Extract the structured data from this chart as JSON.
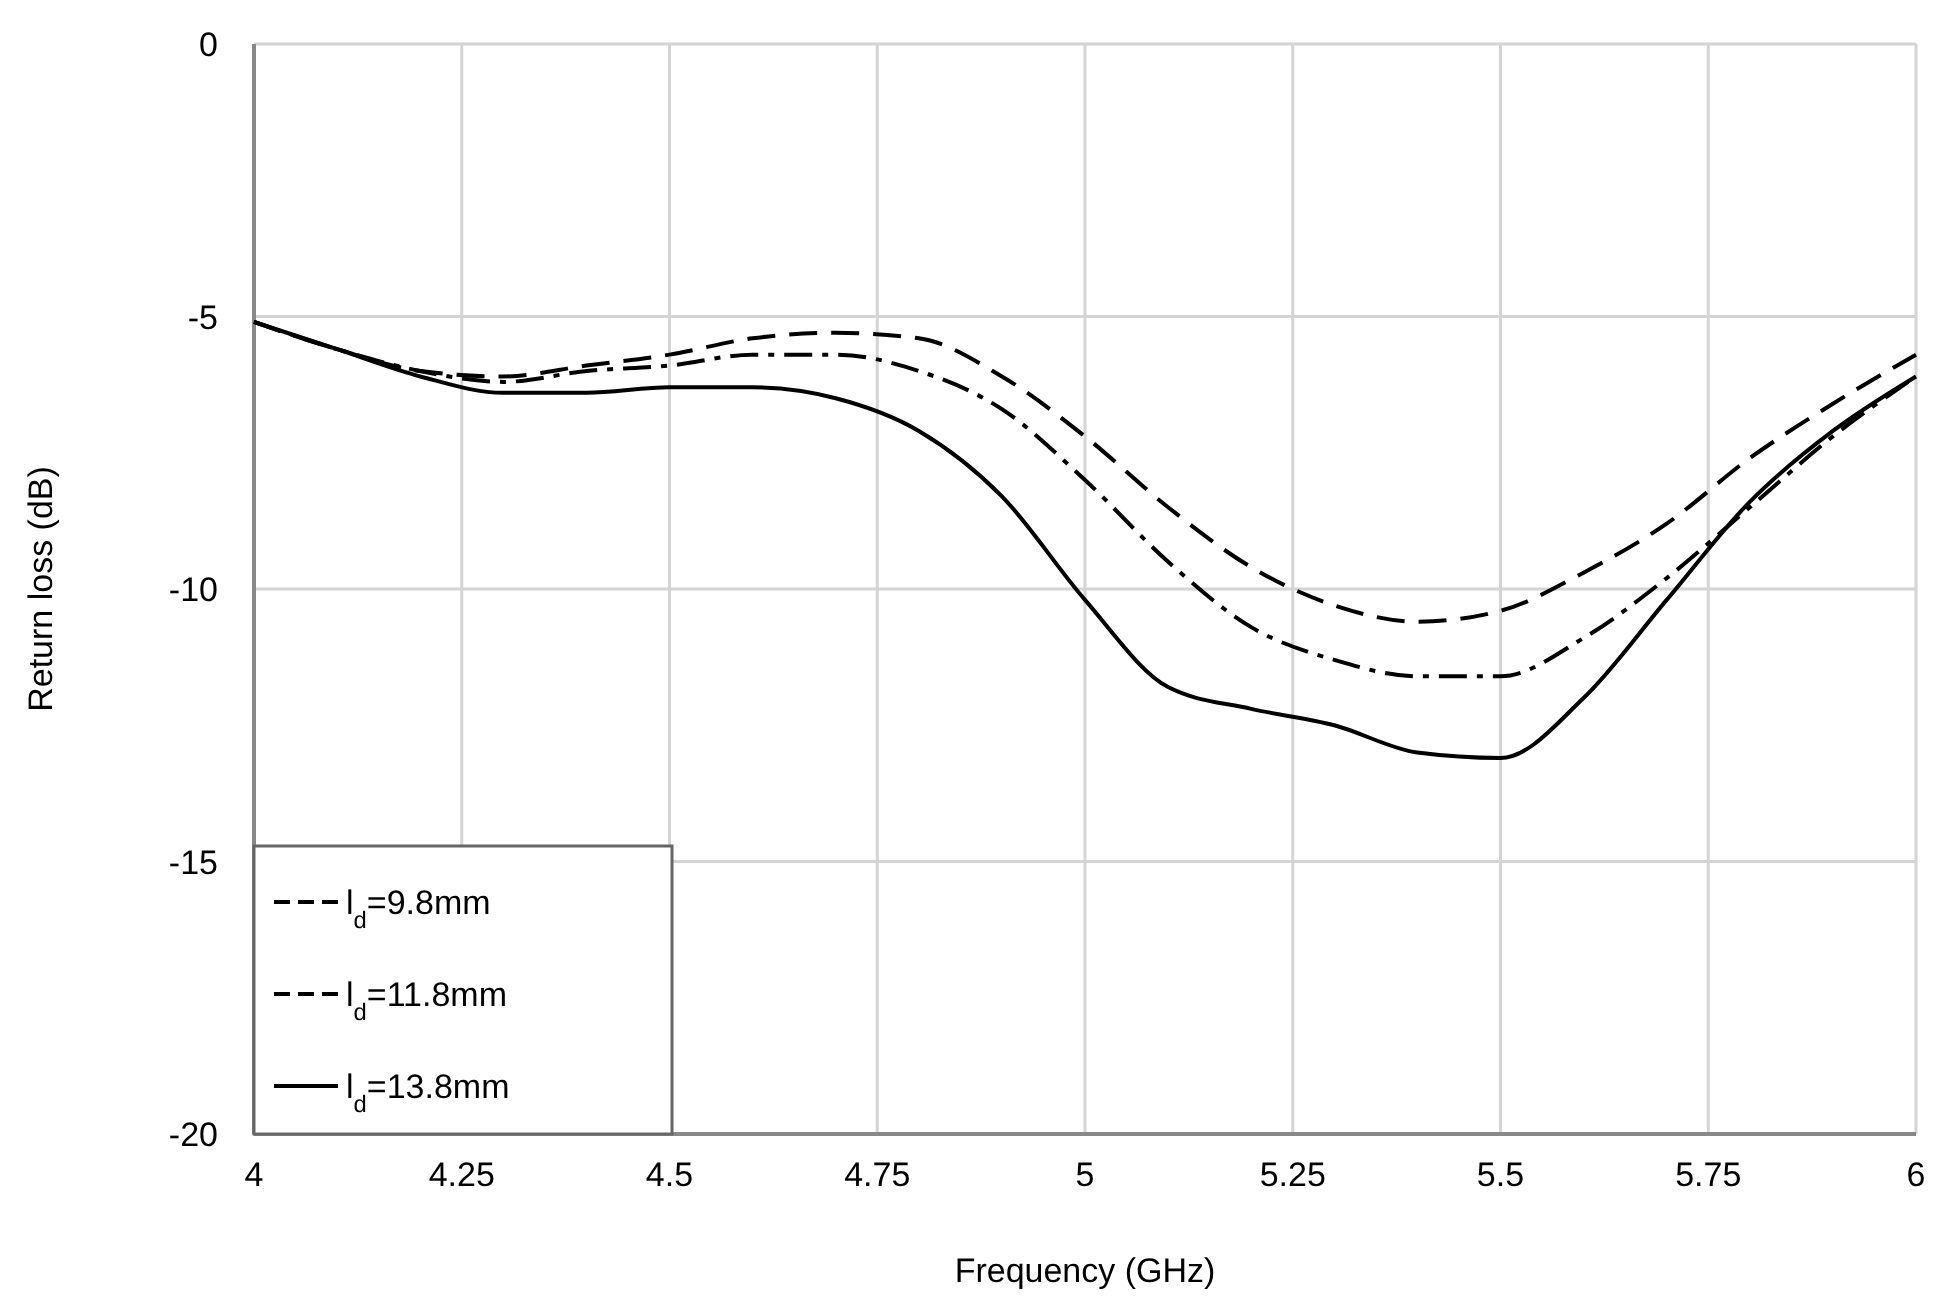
{
  "chart_data": {
    "type": "line",
    "xlabel": "Frequency (GHz)",
    "ylabel": "Return loss (dB)",
    "x": [
      4,
      4.1,
      4.2,
      4.3,
      4.4,
      4.5,
      4.6,
      4.7,
      4.8,
      4.9,
      5,
      5.1,
      5.2,
      5.3,
      5.4,
      5.5,
      5.6,
      5.7,
      5.8,
      5.9,
      6
    ],
    "xlim": [
      4,
      6
    ],
    "xticks": [
      4,
      4.25,
      4.5,
      4.75,
      5,
      5.25,
      5.5,
      5.75,
      6
    ],
    "ylim": [
      -20,
      0
    ],
    "yticks": [
      -20,
      -15,
      -10,
      -5,
      0
    ],
    "grid": true,
    "legend": "bottom left",
    "series": [
      {
        "name": "l$_{d}$=9.8mm",
        "color": "#000000",
        "line_style": "dashed",
        "values": [
          -5.1,
          -5.6,
          -6.0,
          -6.1,
          -5.9,
          -5.7,
          -5.4,
          -5.3,
          -5.4,
          -6.1,
          -7.2,
          -8.5,
          -9.6,
          -10.3,
          -10.6,
          -10.4,
          -9.7,
          -8.8,
          -7.6,
          -6.6,
          -5.7
        ]
      },
      {
        "name": "l$_{d}$=11.8mm",
        "color": "#000000",
        "line_style": "dashdot",
        "values": [
          -5.1,
          -5.6,
          -6.0,
          -6.2,
          -6.0,
          -5.9,
          -5.7,
          -5.7,
          -6.0,
          -6.7,
          -8.0,
          -9.5,
          -10.7,
          -11.3,
          -11.6,
          -11.6,
          -10.9,
          -9.8,
          -8.5,
          -7.2,
          -6.1
        ]
      },
      {
        "name": "l$_{d}$=13.8mm",
        "color": "#000000",
        "line_style": "solid",
        "values": [
          -5.1,
          -5.6,
          -6.1,
          -6.4,
          -6.4,
          -6.3,
          -6.3,
          -6.5,
          -7.1,
          -8.3,
          -10.2,
          -11.8,
          -12.2,
          -12.5,
          -13.0,
          -13.1,
          -12.0,
          -10.2,
          -8.4,
          -7.1,
          -6.1
        ]
      }
    ]
  }
}
